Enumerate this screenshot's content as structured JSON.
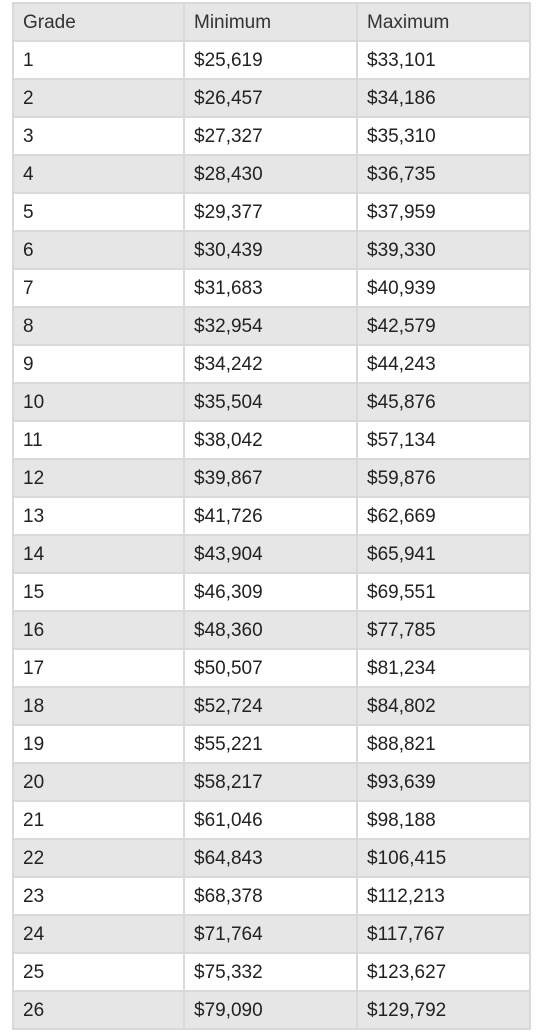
{
  "table": {
    "headers": [
      "Grade",
      "Minimum",
      "Maximum"
    ],
    "rows": [
      [
        "1",
        "$25,619",
        "$33,101"
      ],
      [
        "2",
        "$26,457",
        "$34,186"
      ],
      [
        "3",
        "$27,327",
        "$35,310"
      ],
      [
        "4",
        "$28,430",
        "$36,735"
      ],
      [
        "5",
        "$29,377",
        "$37,959"
      ],
      [
        "6",
        "$30,439",
        "$39,330"
      ],
      [
        "7",
        "$31,683",
        "$40,939"
      ],
      [
        "8",
        "$32,954",
        "$42,579"
      ],
      [
        "9",
        "$34,242",
        "$44,243"
      ],
      [
        "10",
        "$35,504",
        "$45,876"
      ],
      [
        "11",
        "$38,042",
        "$57,134"
      ],
      [
        "12",
        "$39,867",
        "$59,876"
      ],
      [
        "13",
        "$41,726",
        "$62,669"
      ],
      [
        "14",
        "$43,904",
        "$65,941"
      ],
      [
        "15",
        "$46,309",
        "$69,551"
      ],
      [
        "16",
        "$48,360",
        "$77,785"
      ],
      [
        "17",
        "$50,507",
        "$81,234"
      ],
      [
        "18",
        "$52,724",
        "$84,802"
      ],
      [
        "19",
        "$55,221",
        "$88,821"
      ],
      [
        "20",
        "$58,217",
        "$93,639"
      ],
      [
        "21",
        "$61,046",
        "$98,188"
      ],
      [
        "22",
        "$64,843",
        "$106,415"
      ],
      [
        "23",
        "$68,378",
        "$112,213"
      ],
      [
        "24",
        "$71,764",
        "$117,767"
      ],
      [
        "25",
        "$75,332",
        "$123,627"
      ],
      [
        "26",
        "$79,090",
        "$129,792"
      ]
    ]
  },
  "colors": {
    "header_bg": "#e6e6e6",
    "stripe_bg": "#e6e6e6",
    "row_bg": "#ffffff",
    "border": "#d9d9d9"
  }
}
